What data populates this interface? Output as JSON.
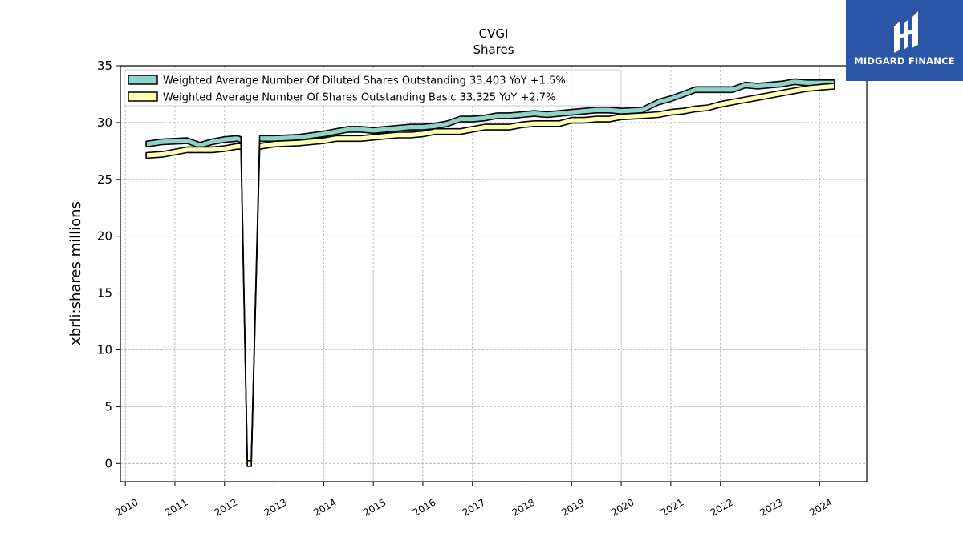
{
  "chart_data": {
    "type": "area",
    "title": "CVGI",
    "subtitle": "Shares",
    "ylabel": "xbrli:shares millions",
    "xlabel": "",
    "ylim": [
      -1.6,
      35
    ],
    "xlim": [
      2009.9,
      2024.95
    ],
    "yticks": [
      0,
      5,
      10,
      15,
      20,
      25,
      30,
      35
    ],
    "xticks": [
      2010,
      2011,
      2012,
      2013,
      2014,
      2015,
      2016,
      2017,
      2018,
      2019,
      2020,
      2021,
      2022,
      2023,
      2024
    ],
    "grid": true,
    "legend_position": "top-left",
    "series": [
      {
        "name": "Weighted Average Number Of Diluted Shares Outstanding",
        "legend_label": "Weighted Average Number Of Diluted Shares Outstanding  33.403 YoY +1.5%",
        "color": "#8dd3c7",
        "points": [
          [
            2010.42,
            28.1
          ],
          [
            2010.75,
            28.3
          ],
          [
            2011.25,
            28.4
          ],
          [
            2011.5,
            28.0
          ],
          [
            2011.75,
            28.3
          ],
          [
            2012.0,
            28.5
          ],
          [
            2012.25,
            28.6
          ],
          [
            2012.33,
            28.5
          ],
          [
            2012.46,
            0.0
          ],
          [
            2012.54,
            0.0
          ],
          [
            2012.71,
            28.6
          ],
          [
            2013.0,
            28.6
          ],
          [
            2013.5,
            28.7
          ],
          [
            2014.0,
            29.0
          ],
          [
            2014.25,
            29.2
          ],
          [
            2014.5,
            29.4
          ],
          [
            2014.75,
            29.4
          ],
          [
            2015.0,
            29.3
          ],
          [
            2015.5,
            29.5
          ],
          [
            2015.75,
            29.6
          ],
          [
            2016.0,
            29.6
          ],
          [
            2016.25,
            29.7
          ],
          [
            2016.5,
            29.9
          ],
          [
            2016.75,
            30.3
          ],
          [
            2017.0,
            30.3
          ],
          [
            2017.25,
            30.4
          ],
          [
            2017.5,
            30.6
          ],
          [
            2017.75,
            30.6
          ],
          [
            2018.0,
            30.7
          ],
          [
            2018.25,
            30.8
          ],
          [
            2018.5,
            30.7
          ],
          [
            2018.75,
            30.8
          ],
          [
            2019.0,
            30.9
          ],
          [
            2019.25,
            31.0
          ],
          [
            2019.5,
            31.1
          ],
          [
            2019.75,
            31.1
          ],
          [
            2020.0,
            31.0
          ],
          [
            2020.42,
            31.1
          ],
          [
            2020.75,
            31.8
          ],
          [
            2021.0,
            32.1
          ],
          [
            2021.25,
            32.5
          ],
          [
            2021.5,
            32.9
          ],
          [
            2021.75,
            32.9
          ],
          [
            2022.0,
            32.9
          ],
          [
            2022.25,
            32.9
          ],
          [
            2022.5,
            33.3
          ],
          [
            2022.75,
            33.2
          ],
          [
            2023.0,
            33.3
          ],
          [
            2023.25,
            33.4
          ],
          [
            2023.5,
            33.6
          ],
          [
            2023.75,
            33.5
          ],
          [
            2024.0,
            33.5
          ],
          [
            2024.3,
            33.5
          ]
        ]
      },
      {
        "name": "Weighted Average Number Of Shares Outstanding Basic",
        "legend_label": "Weighted Average Number Of Shares Outstanding Basic  33.325 YoY +2.7%",
        "color": "#ffffb3",
        "points": [
          [
            2010.42,
            27.1
          ],
          [
            2010.75,
            27.2
          ],
          [
            2011.25,
            27.6
          ],
          [
            2011.5,
            27.6
          ],
          [
            2011.75,
            27.6
          ],
          [
            2012.0,
            27.7
          ],
          [
            2012.25,
            27.9
          ],
          [
            2012.33,
            27.9
          ],
          [
            2012.46,
            0.0
          ],
          [
            2012.54,
            0.0
          ],
          [
            2012.71,
            27.9
          ],
          [
            2013.0,
            28.1
          ],
          [
            2013.5,
            28.2
          ],
          [
            2014.0,
            28.4
          ],
          [
            2014.25,
            28.6
          ],
          [
            2014.5,
            28.6
          ],
          [
            2014.75,
            28.6
          ],
          [
            2015.0,
            28.7
          ],
          [
            2015.5,
            28.9
          ],
          [
            2015.75,
            28.9
          ],
          [
            2016.0,
            29.0
          ],
          [
            2016.25,
            29.2
          ],
          [
            2016.5,
            29.2
          ],
          [
            2016.75,
            29.2
          ],
          [
            2017.0,
            29.4
          ],
          [
            2017.25,
            29.6
          ],
          [
            2017.5,
            29.6
          ],
          [
            2017.75,
            29.6
          ],
          [
            2018.0,
            29.8
          ],
          [
            2018.25,
            29.9
          ],
          [
            2018.5,
            29.9
          ],
          [
            2018.75,
            29.9
          ],
          [
            2019.0,
            30.2
          ],
          [
            2019.25,
            30.2
          ],
          [
            2019.5,
            30.3
          ],
          [
            2019.75,
            30.3
          ],
          [
            2020.0,
            30.5
          ],
          [
            2020.42,
            30.6
          ],
          [
            2020.75,
            30.7
          ],
          [
            2021.0,
            30.9
          ],
          [
            2021.25,
            31.0
          ],
          [
            2021.5,
            31.2
          ],
          [
            2021.75,
            31.3
          ],
          [
            2022.0,
            31.6
          ],
          [
            2022.25,
            31.8
          ],
          [
            2022.5,
            32.0
          ],
          [
            2022.75,
            32.2
          ],
          [
            2023.0,
            32.4
          ],
          [
            2023.25,
            32.6
          ],
          [
            2023.5,
            32.8
          ],
          [
            2023.75,
            33.0
          ],
          [
            2024.0,
            33.1
          ],
          [
            2024.3,
            33.2
          ]
        ]
      }
    ]
  },
  "logo": {
    "text": "MIDGARD FINANCE",
    "background": "#2b55a6"
  }
}
